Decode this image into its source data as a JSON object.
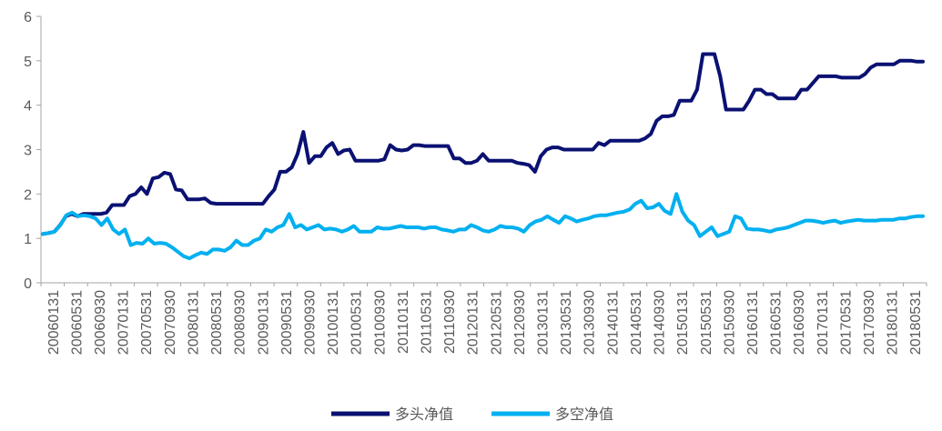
{
  "colors": {
    "long": "#0a1172",
    "longshort": "#00b0f0",
    "axis": "#a6a6a6",
    "text": "#595959"
  },
  "chart_data": {
    "type": "line",
    "ylim": [
      0,
      6
    ],
    "y_ticks": [
      "0",
      "1",
      "2",
      "3",
      "4",
      "5",
      "6"
    ],
    "x_tick_labels": [
      "20060131",
      "20060531",
      "20060930",
      "20070131",
      "20070531",
      "20070930",
      "20080131",
      "20080531",
      "20080930",
      "20090131",
      "20090531",
      "20090930",
      "20100131",
      "20100531",
      "20100930",
      "20110131",
      "20110531",
      "20110930",
      "20120131",
      "20120531",
      "20120930",
      "20130131",
      "20130531",
      "20130930",
      "20140131",
      "20140531",
      "20140930",
      "20150131",
      "20150531",
      "20150930",
      "20160131",
      "20160531",
      "20160930",
      "20170131",
      "20170531",
      "20170930",
      "20180131",
      "20180531"
    ],
    "grid": false,
    "legend_position": "bottom",
    "series": [
      {
        "name": "多头净值",
        "color_key": "long",
        "values": [
          1.1,
          1.12,
          1.15,
          1.3,
          1.5,
          1.55,
          1.5,
          1.55,
          1.55,
          1.55,
          1.55,
          1.58,
          1.75,
          1.75,
          1.75,
          1.95,
          2.0,
          2.15,
          2.0,
          2.35,
          2.38,
          2.48,
          2.45,
          2.1,
          2.08,
          1.88,
          1.88,
          1.88,
          1.9,
          1.8,
          1.78,
          1.78,
          1.78,
          1.78,
          1.78,
          1.78,
          1.78,
          1.78,
          1.78,
          1.95,
          2.1,
          2.5,
          2.5,
          2.6,
          2.9,
          3.4,
          2.7,
          2.85,
          2.85,
          3.05,
          3.15,
          2.9,
          2.98,
          3.0,
          2.75,
          2.75,
          2.75,
          2.75,
          2.75,
          2.78,
          3.1,
          3.0,
          2.98,
          3.0,
          3.1,
          3.1,
          3.08,
          3.08,
          3.08,
          3.08,
          3.08,
          2.8,
          2.8,
          2.7,
          2.7,
          2.75,
          2.9,
          2.75,
          2.75,
          2.75,
          2.75,
          2.75,
          2.7,
          2.68,
          2.65,
          2.5,
          2.85,
          3.0,
          3.05,
          3.05,
          3.0,
          3.0,
          3.0,
          3.0,
          3.0,
          3.0,
          3.15,
          3.1,
          3.2,
          3.2,
          3.2,
          3.2,
          3.2,
          3.2,
          3.25,
          3.35,
          3.65,
          3.75,
          3.75,
          3.78,
          4.1,
          4.1,
          4.1,
          4.35,
          5.15,
          5.15,
          5.15,
          4.65,
          3.9,
          3.9,
          3.9,
          3.9,
          4.1,
          4.35,
          4.35,
          4.25,
          4.25,
          4.15,
          4.15,
          4.15,
          4.15,
          4.35,
          4.35,
          4.5,
          4.65,
          4.65,
          4.65,
          4.65,
          4.62,
          4.62,
          4.62,
          4.62,
          4.7,
          4.85,
          4.92,
          4.92,
          4.92,
          4.92,
          5.0,
          5.0,
          5.0,
          4.98,
          4.98
        ]
      },
      {
        "name": "多空净值",
        "color_key": "longshort",
        "values": [
          1.1,
          1.12,
          1.15,
          1.3,
          1.52,
          1.58,
          1.5,
          1.52,
          1.5,
          1.45,
          1.3,
          1.45,
          1.2,
          1.1,
          1.2,
          0.85,
          0.9,
          0.88,
          1.0,
          0.88,
          0.9,
          0.88,
          0.8,
          0.7,
          0.6,
          0.55,
          0.62,
          0.68,
          0.65,
          0.75,
          0.75,
          0.72,
          0.8,
          0.95,
          0.85,
          0.85,
          0.95,
          1.0,
          1.2,
          1.15,
          1.25,
          1.3,
          1.55,
          1.25,
          1.3,
          1.2,
          1.25,
          1.3,
          1.2,
          1.22,
          1.2,
          1.15,
          1.2,
          1.28,
          1.15,
          1.15,
          1.15,
          1.25,
          1.22,
          1.22,
          1.25,
          1.28,
          1.25,
          1.25,
          1.25,
          1.22,
          1.25,
          1.25,
          1.2,
          1.18,
          1.15,
          1.2,
          1.2,
          1.3,
          1.25,
          1.18,
          1.15,
          1.2,
          1.28,
          1.25,
          1.25,
          1.22,
          1.15,
          1.3,
          1.38,
          1.42,
          1.5,
          1.42,
          1.35,
          1.5,
          1.45,
          1.38,
          1.42,
          1.45,
          1.5,
          1.52,
          1.52,
          1.55,
          1.58,
          1.6,
          1.65,
          1.78,
          1.85,
          1.68,
          1.7,
          1.78,
          1.62,
          1.55,
          2.0,
          1.6,
          1.4,
          1.3,
          1.05,
          1.15,
          1.25,
          1.05,
          1.1,
          1.15,
          1.5,
          1.45,
          1.22,
          1.2,
          1.2,
          1.18,
          1.15,
          1.2,
          1.22,
          1.25,
          1.3,
          1.35,
          1.4,
          1.4,
          1.38,
          1.35,
          1.38,
          1.4,
          1.35,
          1.38,
          1.4,
          1.42,
          1.4,
          1.4,
          1.4,
          1.42,
          1.42,
          1.42,
          1.45,
          1.45,
          1.48,
          1.5,
          1.5
        ]
      }
    ]
  }
}
